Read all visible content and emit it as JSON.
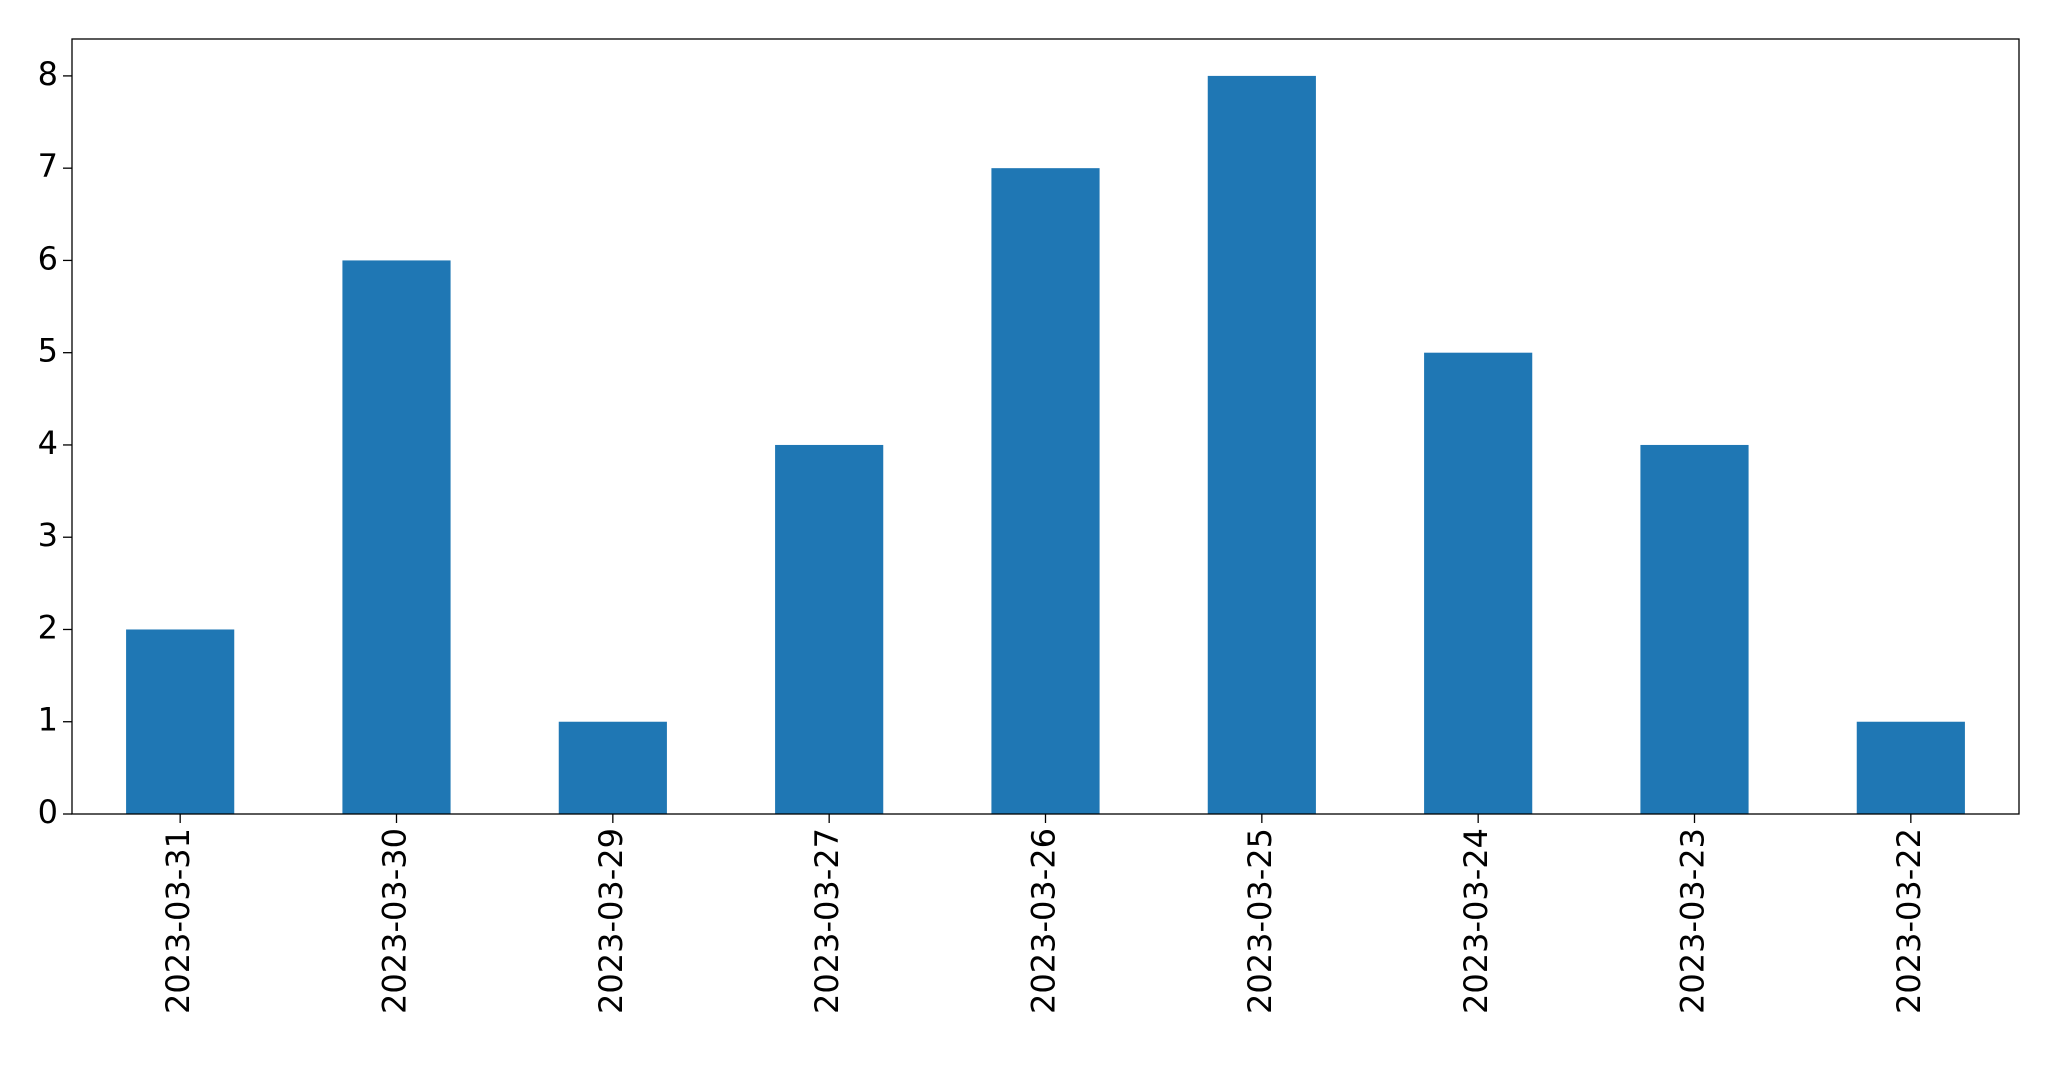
{
  "chart_data": {
    "type": "bar",
    "categories": [
      "2023-03-31",
      "2023-03-30",
      "2023-03-29",
      "2023-03-27",
      "2023-03-26",
      "2023-03-25",
      "2023-03-24",
      "2023-03-23",
      "2023-03-22"
    ],
    "values": [
      2,
      6,
      1,
      4,
      7,
      8,
      5,
      4,
      1
    ],
    "color": "#1f77b4",
    "ylim": [
      0,
      8.4
    ],
    "yticks": [
      0,
      1,
      2,
      3,
      4,
      5,
      6,
      7,
      8
    ],
    "grid": false
  }
}
